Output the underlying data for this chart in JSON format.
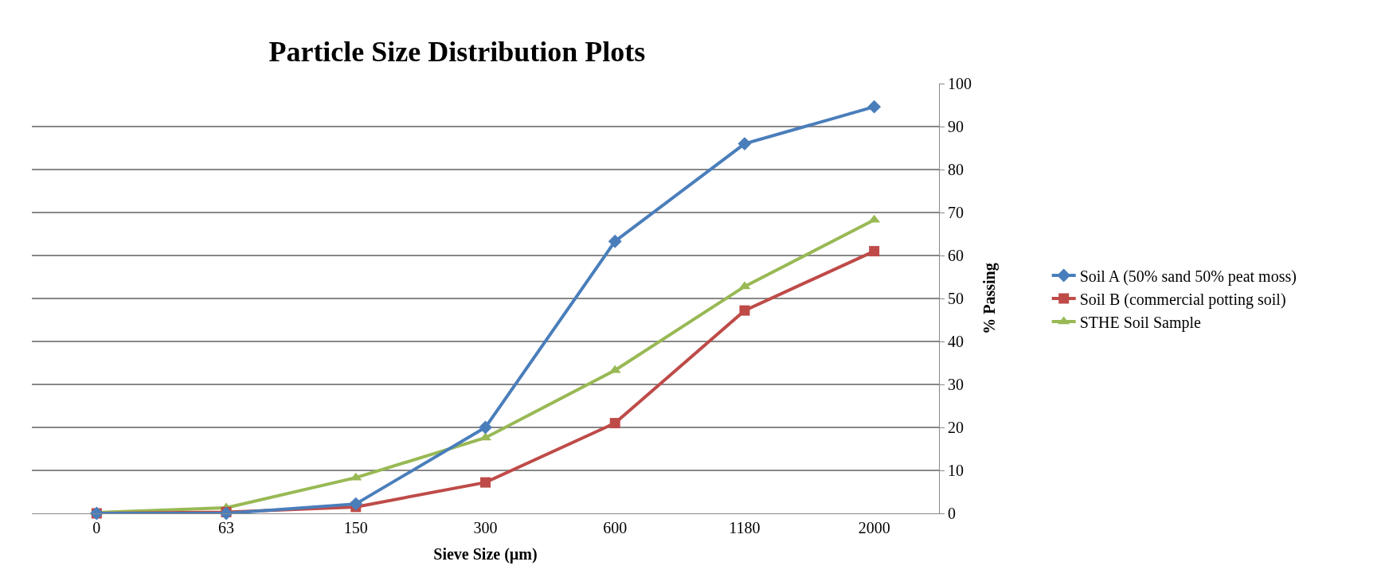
{
  "chart_data": {
    "type": "line",
    "title": "Particle Size Distribution Plots",
    "xlabel": "Sieve Size (µm)",
    "ylabel": "% Passing",
    "categories": [
      "0",
      "63",
      "150",
      "300",
      "600",
      "1180",
      "2000"
    ],
    "series": [
      {
        "name": "Soil A (50% sand 50% peat moss)",
        "color": "#4a7ebb",
        "marker": "diamond",
        "values": [
          0,
          0,
          2.2,
          20,
          63.3,
          86,
          94.6
        ]
      },
      {
        "name": "Soil B (commercial potting soil)",
        "color": "#be4b48",
        "marker": "square",
        "values": [
          0,
          0.3,
          1.5,
          7.2,
          21,
          47.2,
          61
        ]
      },
      {
        "name": "STHE Soil Sample",
        "color": "#98b954",
        "marker": "triangle",
        "values": [
          0.2,
          1.3,
          8.3,
          17.6,
          33.3,
          52.8,
          68.3
        ]
      }
    ],
    "ylim": [
      0,
      100
    ],
    "yticks": [
      0,
      10,
      20,
      30,
      40,
      50,
      60,
      70,
      80,
      90,
      100
    ],
    "grid": "y",
    "legend": "right"
  }
}
